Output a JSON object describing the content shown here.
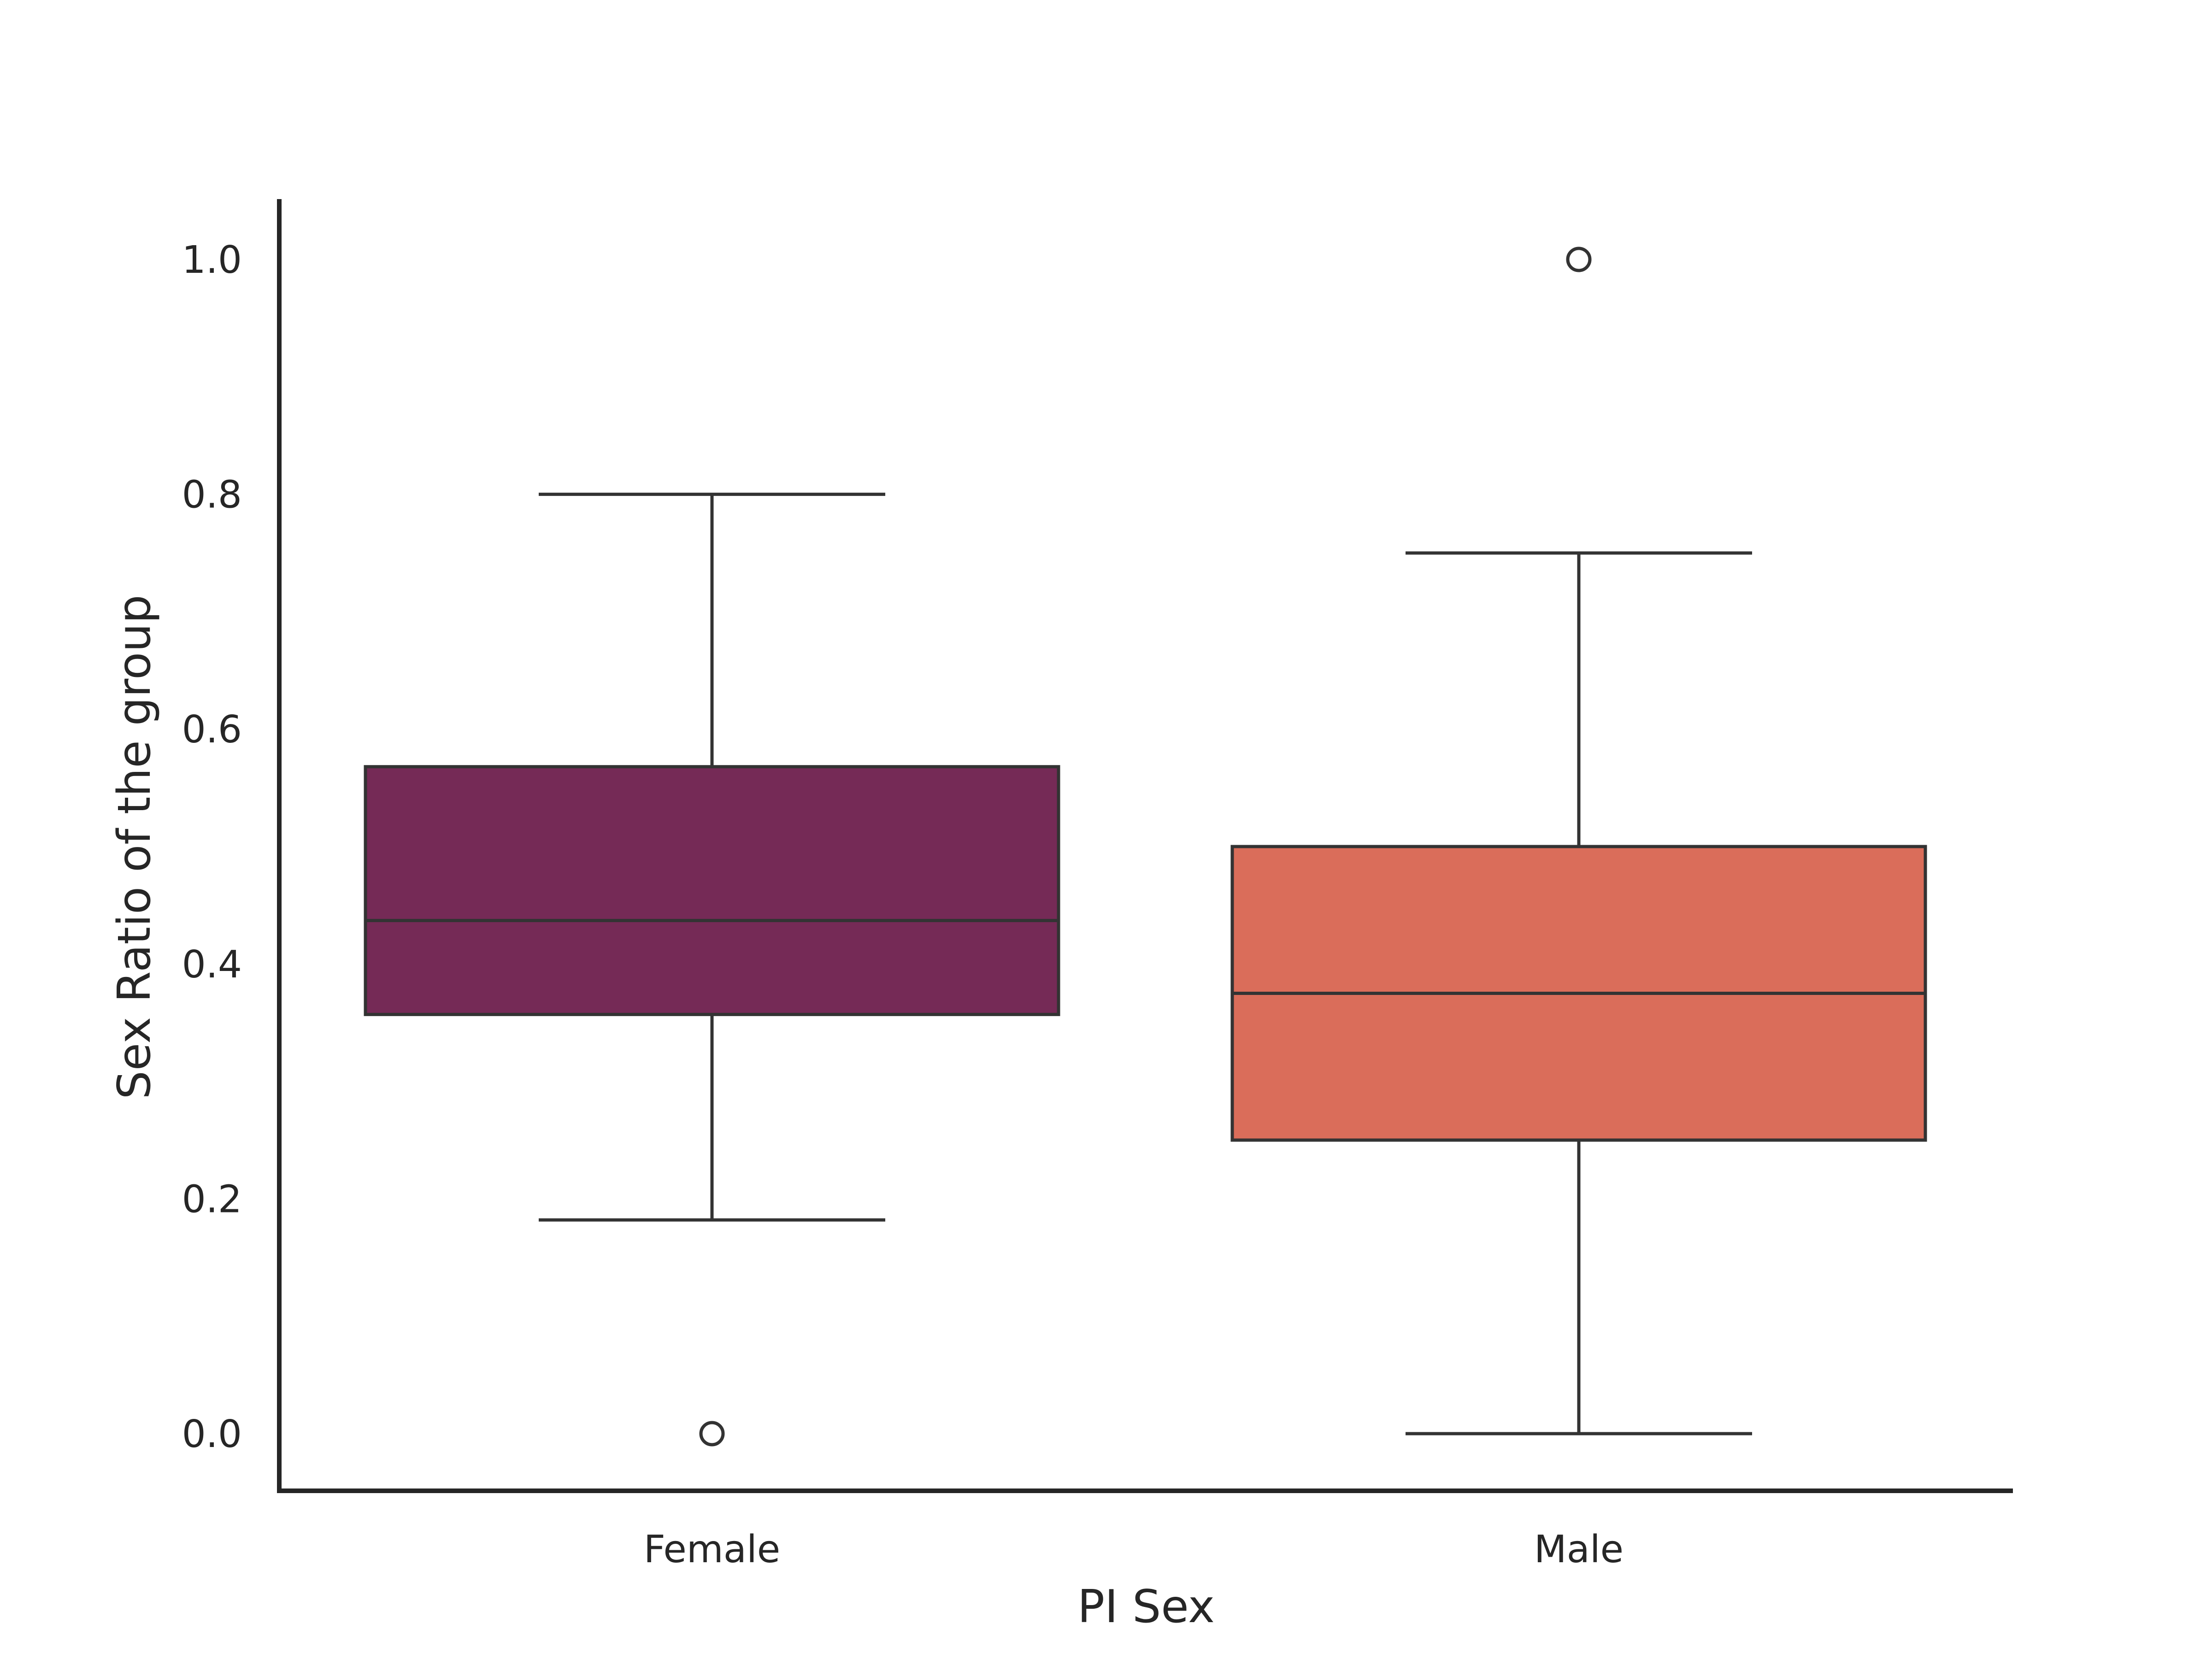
{
  "chart_data": {
    "type": "box",
    "title": "",
    "xlabel": "PI Sex",
    "ylabel": "Sex Ratio of the group",
    "categories": [
      "Female",
      "Male"
    ],
    "y_ticks": [
      "0.0",
      "0.2",
      "0.4",
      "0.6",
      "0.8",
      "1.0"
    ],
    "ylim": [
      -0.05,
      1.05
    ],
    "grid": false,
    "legend": "none",
    "boxes": [
      {
        "category": "Female",
        "color": "#752a56",
        "whisker_low": 0.182,
        "q1": 0.357,
        "median": 0.437,
        "q3": 0.568,
        "whisker_high": 0.8,
        "outliers": [
          0.0
        ]
      },
      {
        "category": "Male",
        "color": "#da6d5a",
        "whisker_low": 0.0,
        "q1": 0.25,
        "median": 0.375,
        "q3": 0.5,
        "whisker_high": 0.75,
        "outliers": [
          1.0
        ]
      }
    ]
  }
}
